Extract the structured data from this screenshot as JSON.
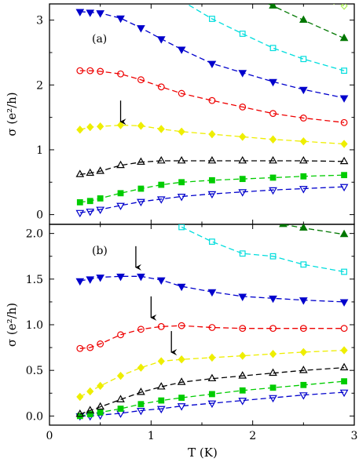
{
  "chart_data": [
    {
      "type": "line",
      "panel_label": "(a)",
      "xlabel": "",
      "ylabel": "σ (e²/h)",
      "xlim": [
        0,
        3
      ],
      "ylim": [
        -0.15,
        3.25
      ],
      "yticks": [
        0,
        1,
        2,
        3
      ],
      "grid": false,
      "series": [
        {
          "color": "#0000cc",
          "marker": "triangle-down-open",
          "x": [
            0.3,
            0.4,
            0.5,
            0.7,
            0.9,
            1.1,
            1.3,
            1.6,
            1.9,
            2.2,
            2.5,
            2.9
          ],
          "y": [
            0.03,
            0.05,
            0.08,
            0.14,
            0.2,
            0.24,
            0.28,
            0.32,
            0.35,
            0.38,
            0.4,
            0.43
          ]
        },
        {
          "color": "#00cc00",
          "marker": "square-filled",
          "x": [
            0.3,
            0.4,
            0.5,
            0.7,
            0.9,
            1.1,
            1.3,
            1.6,
            1.9,
            2.2,
            2.5,
            2.9
          ],
          "y": [
            0.19,
            0.21,
            0.25,
            0.33,
            0.4,
            0.46,
            0.5,
            0.53,
            0.55,
            0.57,
            0.59,
            0.61
          ]
        },
        {
          "color": "#000000",
          "marker": "triangle-up-open",
          "x": [
            0.3,
            0.4,
            0.5,
            0.7,
            0.9,
            1.1,
            1.3,
            1.6,
            1.9,
            2.2,
            2.5,
            2.9
          ],
          "y": [
            0.62,
            0.64,
            0.67,
            0.76,
            0.81,
            0.83,
            0.83,
            0.83,
            0.83,
            0.83,
            0.83,
            0.82
          ]
        },
        {
          "color": "#eeee00",
          "marker": "diamond-filled",
          "x": [
            0.3,
            0.4,
            0.5,
            0.7,
            0.9,
            1.1,
            1.3,
            1.6,
            1.9,
            2.2,
            2.5,
            2.9
          ],
          "y": [
            1.31,
            1.35,
            1.36,
            1.38,
            1.37,
            1.32,
            1.28,
            1.24,
            1.2,
            1.16,
            1.13,
            1.09
          ]
        },
        {
          "color": "#ee0000",
          "marker": "circle-open",
          "x": [
            0.3,
            0.4,
            0.5,
            0.7,
            0.9,
            1.1,
            1.3,
            1.6,
            1.9,
            2.2,
            2.5,
            2.9
          ],
          "y": [
            2.22,
            2.22,
            2.21,
            2.17,
            2.08,
            1.97,
            1.87,
            1.76,
            1.66,
            1.56,
            1.49,
            1.42
          ]
        },
        {
          "color": "#0000cc",
          "marker": "triangle-down-filled",
          "x": [
            0.3,
            0.4,
            0.5,
            0.7,
            0.9,
            1.1,
            1.3,
            1.6,
            1.9,
            2.2,
            2.5,
            2.9
          ],
          "y": [
            3.13,
            3.12,
            3.11,
            3.03,
            2.88,
            2.71,
            2.55,
            2.33,
            2.19,
            2.05,
            1.93,
            1.8
          ]
        },
        {
          "color": "#00dddd",
          "marker": "square-open",
          "x": [
            1.3,
            1.6,
            1.9,
            2.2,
            2.5,
            2.9
          ],
          "y": [
            3.3,
            3.02,
            2.79,
            2.57,
            2.4,
            2.22
          ]
        },
        {
          "color": "#007700",
          "marker": "triangle-up-filled",
          "x": [
            2.0,
            2.2,
            2.5,
            2.9
          ],
          "y": [
            3.35,
            3.22,
            3.0,
            2.72
          ]
        },
        {
          "color": "#aaee55",
          "marker": "diamond-open",
          "x": [
            2.8,
            2.9
          ],
          "y": [
            3.3,
            3.22
          ]
        }
      ],
      "annotations": [
        {
          "kind": "arrow",
          "x": 0.7,
          "y": 1.42
        }
      ]
    },
    {
      "type": "line",
      "panel_label": "(b)",
      "xlabel": "T (K)",
      "ylabel": "σ (e²/h)",
      "xlim": [
        0,
        3
      ],
      "ylim": [
        -0.1,
        2.1
      ],
      "xticks": [
        0,
        1,
        2,
        3
      ],
      "yticks": [
        0.0,
        0.5,
        1.0,
        1.5,
        2.0
      ],
      "ytick_labels": [
        "0.0",
        "0.5",
        "1.0",
        "1.5",
        "2.0"
      ],
      "grid": false,
      "series": [
        {
          "color": "#0000cc",
          "marker": "triangle-down-open",
          "x": [
            0.3,
            0.4,
            0.5,
            0.7,
            0.9,
            1.1,
            1.3,
            1.6,
            1.9,
            2.2,
            2.5,
            2.9
          ],
          "y": [
            0.0,
            0.0,
            0.01,
            0.03,
            0.06,
            0.08,
            0.11,
            0.14,
            0.17,
            0.2,
            0.23,
            0.26
          ]
        },
        {
          "color": "#00cc00",
          "marker": "square-filled",
          "x": [
            0.3,
            0.4,
            0.5,
            0.7,
            0.9,
            1.1,
            1.3,
            1.6,
            1.9,
            2.2,
            2.5,
            2.9
          ],
          "y": [
            0.0,
            0.02,
            0.04,
            0.08,
            0.13,
            0.17,
            0.2,
            0.24,
            0.28,
            0.31,
            0.34,
            0.38
          ]
        },
        {
          "color": "#000000",
          "marker": "triangle-up-open",
          "x": [
            0.3,
            0.4,
            0.5,
            0.7,
            0.9,
            1.1,
            1.3,
            1.6,
            1.9,
            2.2,
            2.5,
            2.9
          ],
          "y": [
            0.02,
            0.06,
            0.1,
            0.18,
            0.26,
            0.32,
            0.37,
            0.41,
            0.44,
            0.47,
            0.5,
            0.53
          ]
        },
        {
          "color": "#eeee00",
          "marker": "diamond-filled",
          "x": [
            0.3,
            0.4,
            0.5,
            0.7,
            0.9,
            1.1,
            1.3,
            1.6,
            1.9,
            2.2,
            2.5,
            2.9
          ],
          "y": [
            0.21,
            0.27,
            0.33,
            0.44,
            0.53,
            0.6,
            0.62,
            0.64,
            0.66,
            0.68,
            0.7,
            0.72
          ]
        },
        {
          "color": "#ee0000",
          "marker": "circle-open",
          "x": [
            0.3,
            0.4,
            0.5,
            0.7,
            0.9,
            1.1,
            1.3,
            1.6,
            1.9,
            2.2,
            2.5,
            2.9
          ],
          "y": [
            0.74,
            0.75,
            0.79,
            0.89,
            0.95,
            0.98,
            0.99,
            0.97,
            0.96,
            0.96,
            0.96,
            0.96
          ]
        },
        {
          "color": "#0000cc",
          "marker": "triangle-down-filled",
          "x": [
            0.3,
            0.4,
            0.5,
            0.7,
            0.9,
            1.1,
            1.3,
            1.6,
            1.9,
            2.2,
            2.5,
            2.9
          ],
          "y": [
            1.48,
            1.5,
            1.52,
            1.53,
            1.53,
            1.49,
            1.42,
            1.36,
            1.31,
            1.29,
            1.27,
            1.25
          ]
        },
        {
          "color": "#00dddd",
          "marker": "square-open",
          "x": [
            1.3,
            1.6,
            1.9,
            2.2,
            2.5,
            2.9
          ],
          "y": [
            2.07,
            1.91,
            1.78,
            1.75,
            1.66,
            1.58
          ]
        },
        {
          "color": "#007700",
          "marker": "triangle-up-filled",
          "x": [
            2.3,
            2.5,
            2.9
          ],
          "y": [
            2.1,
            2.06,
            1.99
          ]
        }
      ],
      "annotations": [
        {
          "kind": "arrow",
          "x": 0.85,
          "y": 1.62
        },
        {
          "kind": "arrow",
          "x": 1.0,
          "y": 1.07
        },
        {
          "kind": "arrow",
          "x": 1.2,
          "y": 0.69
        }
      ]
    }
  ]
}
